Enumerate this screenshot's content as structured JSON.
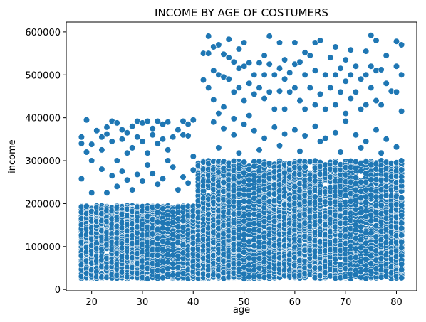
{
  "chart_data": {
    "type": "scatter",
    "title": "INCOME BY AGE OF COSTUMERS",
    "xlabel": "age",
    "ylabel": "income",
    "xlim": [
      15,
      84
    ],
    "ylim": [
      -3000,
      623000
    ],
    "x_ticks": [
      "20",
      "30",
      "40",
      "50",
      "60",
      "70",
      "80"
    ],
    "y_ticks": [
      "0",
      "100000",
      "200000",
      "300000",
      "400000",
      "500000",
      "600000"
    ],
    "grid": false,
    "legend": "none",
    "marker_color": "#1f77b4",
    "marker_edge_color": "#ffffff",
    "age_range": [
      18,
      81
    ],
    "points": [
      [
        18,
        258000
      ],
      [
        18,
        340000
      ],
      [
        18,
        355000
      ],
      [
        19,
        395000
      ],
      [
        19,
        320000
      ],
      [
        20,
        338000
      ],
      [
        20,
        300000
      ],
      [
        21,
        370000
      ],
      [
        22,
        355000
      ],
      [
        22,
        325000
      ],
      [
        23,
        378000
      ],
      [
        23,
        362000
      ],
      [
        24,
        392000
      ],
      [
        24,
        345000
      ],
      [
        25,
        388000
      ],
      [
        25,
        300000
      ],
      [
        26,
        372000
      ],
      [
        26,
        350000
      ],
      [
        27,
        365000
      ],
      [
        27,
        318000
      ],
      [
        28,
        380000
      ],
      [
        28,
        330000
      ],
      [
        29,
        392000
      ],
      [
        29,
        355000
      ],
      [
        30,
        388000
      ],
      [
        30,
        345000
      ],
      [
        31,
        392000
      ],
      [
        31,
        318000
      ],
      [
        32,
        375000
      ],
      [
        32,
        360000
      ],
      [
        33,
        392000
      ],
      [
        33,
        340000
      ],
      [
        34,
        385000
      ],
      [
        34,
        350000
      ],
      [
        35,
        390000
      ],
      [
        35,
        325000
      ],
      [
        36,
        355000
      ],
      [
        37,
        372000
      ],
      [
        38,
        392000
      ],
      [
        38,
        360000
      ],
      [
        39,
        385000
      ],
      [
        39,
        358000
      ],
      [
        40,
        395000
      ],
      [
        40,
        310000
      ],
      [
        20,
        225000
      ],
      [
        22,
        280000
      ],
      [
        23,
        225000
      ],
      [
        24,
        265000
      ],
      [
        25,
        240000
      ],
      [
        26,
        275000
      ],
      [
        27,
        255000
      ],
      [
        28,
        232000
      ],
      [
        29,
        268000
      ],
      [
        30,
        252000
      ],
      [
        31,
        290000
      ],
      [
        32,
        270000
      ],
      [
        33,
        245000
      ],
      [
        34,
        258000
      ],
      [
        35,
        300000
      ],
      [
        36,
        285000
      ],
      [
        37,
        232000
      ],
      [
        38,
        262000
      ],
      [
        39,
        248000
      ],
      [
        40,
        278000
      ],
      [
        42,
        550000
      ],
      [
        42,
        488000
      ],
      [
        43,
        590000
      ],
      [
        43,
        550000
      ],
      [
        43,
        470000
      ],
      [
        44,
        565000
      ],
      [
        44,
        510000
      ],
      [
        44,
        442000
      ],
      [
        45,
        570000
      ],
      [
        45,
        500000
      ],
      [
        45,
        410000
      ],
      [
        46,
        548000
      ],
      [
        46,
        495000
      ],
      [
        46,
        425000
      ],
      [
        47,
        583000
      ],
      [
        47,
        540000
      ],
      [
        47,
        490000
      ],
      [
        48,
        530000
      ],
      [
        48,
        460000
      ],
      [
        48,
        398000
      ],
      [
        49,
        560000
      ],
      [
        49,
        515000
      ],
      [
        49,
        470000
      ],
      [
        50,
        575000
      ],
      [
        50,
        520000
      ],
      [
        50,
        440000
      ],
      [
        51,
        528000
      ],
      [
        51,
        480000
      ],
      [
        51,
        405000
      ],
      [
        52,
        500000
      ],
      [
        52,
        455000
      ],
      [
        53,
        528000
      ],
      [
        53,
        470000
      ],
      [
        54,
        545000
      ],
      [
        54,
        500000
      ],
      [
        54,
        445000
      ],
      [
        55,
        590000
      ],
      [
        55,
        525000
      ],
      [
        55,
        460000
      ],
      [
        56,
        500000
      ],
      [
        56,
        420000
      ],
      [
        57,
        575000
      ],
      [
        57,
        515000
      ],
      [
        57,
        462000
      ],
      [
        58,
        535000
      ],
      [
        58,
        490000
      ],
      [
        58,
        420000
      ],
      [
        59,
        505000
      ],
      [
        59,
        460000
      ],
      [
        60,
        575000
      ],
      [
        60,
        525000
      ],
      [
        60,
        470000
      ],
      [
        61,
        530000
      ],
      [
        61,
        440000
      ],
      [
        62,
        552000
      ],
      [
        62,
        500000
      ],
      [
        62,
        420000
      ],
      [
        63,
        545000
      ],
      [
        63,
        470000
      ],
      [
        64,
        575000
      ],
      [
        64,
        510000
      ],
      [
        64,
        430000
      ],
      [
        65,
        580000
      ],
      [
        65,
        455000
      ],
      [
        66,
        500000
      ],
      [
        66,
        420000
      ],
      [
        67,
        540000
      ],
      [
        67,
        470000
      ],
      [
        68,
        565000
      ],
      [
        68,
        500000
      ],
      [
        68,
        430000
      ],
      [
        69,
        515000
      ],
      [
        69,
        460000
      ],
      [
        70,
        535000
      ],
      [
        70,
        485000
      ],
      [
        70,
        410000
      ],
      [
        71,
        558000
      ],
      [
        71,
        500000
      ],
      [
        71,
        445000
      ],
      [
        72,
        520000
      ],
      [
        72,
        460000
      ],
      [
        73,
        490000
      ],
      [
        73,
        420000
      ],
      [
        74,
        555000
      ],
      [
        74,
        500000
      ],
      [
        74,
        430000
      ],
      [
        75,
        592000
      ],
      [
        75,
        520000
      ],
      [
        75,
        470000
      ],
      [
        76,
        580000
      ],
      [
        76,
        510000
      ],
      [
        76,
        440000
      ],
      [
        77,
        512000
      ],
      [
        77,
        430000
      ],
      [
        78,
        545000
      ],
      [
        78,
        480000
      ],
      [
        79,
        462000
      ],
      [
        80,
        578000
      ],
      [
        80,
        520000
      ],
      [
        80,
        460000
      ],
      [
        81,
        570000
      ],
      [
        81,
        500000
      ],
      [
        81,
        415000
      ],
      [
        44,
        390000
      ],
      [
        46,
        375000
      ],
      [
        48,
        360000
      ],
      [
        50,
        385000
      ],
      [
        52,
        370000
      ],
      [
        54,
        352000
      ],
      [
        56,
        378000
      ],
      [
        58,
        362000
      ],
      [
        60,
        372000
      ],
      [
        62,
        358000
      ],
      [
        64,
        380000
      ],
      [
        66,
        352000
      ],
      [
        68,
        365000
      ],
      [
        70,
        392000
      ],
      [
        72,
        360000
      ],
      [
        74,
        345000
      ],
      [
        76,
        372000
      ],
      [
        78,
        350000
      ],
      [
        80,
        332000
      ],
      [
        45,
        330000
      ],
      [
        49,
        318000
      ],
      [
        53,
        325000
      ],
      [
        57,
        335000
      ],
      [
        61,
        322000
      ],
      [
        65,
        345000
      ],
      [
        69,
        320000
      ],
      [
        73,
        330000
      ],
      [
        77,
        318000
      ],
      [
        81,
        300000
      ]
    ],
    "bands": [
      {
        "age_range": [
          18,
          81
        ],
        "income_range": [
          25000,
          195000
        ],
        "per_age": 85
      },
      {
        "age_range": [
          41,
          81
        ],
        "income_range": [
          195000,
          300000
        ],
        "per_age": 32
      }
    ]
  }
}
